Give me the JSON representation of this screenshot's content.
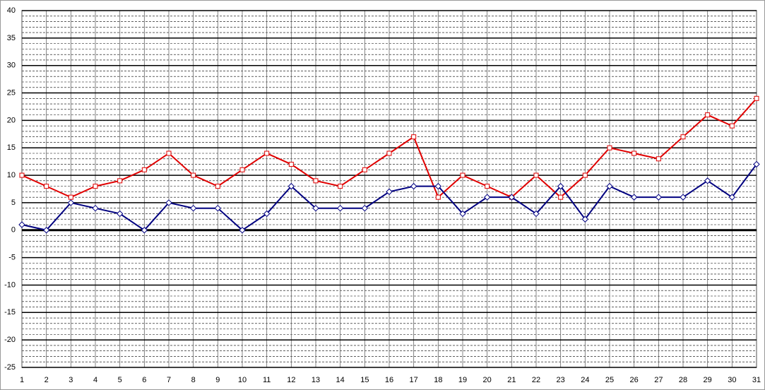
{
  "chart_data": {
    "type": "line",
    "categories": [
      "1",
      "2",
      "3",
      "4",
      "5",
      "6",
      "7",
      "8",
      "9",
      "10",
      "11",
      "12",
      "13",
      "14",
      "15",
      "16",
      "17",
      "18",
      "19",
      "20",
      "21",
      "22",
      "23",
      "24",
      "25",
      "26",
      "27",
      "28",
      "29",
      "30",
      "31"
    ],
    "series": [
      {
        "color": "#e00000",
        "marker": "square",
        "values": [
          10,
          8,
          6,
          8,
          9,
          11,
          14,
          10,
          8,
          11,
          14,
          12,
          9,
          8,
          11,
          14,
          17,
          6,
          10,
          8,
          6,
          10,
          6,
          10,
          15,
          14,
          13,
          17,
          21,
          19,
          24
        ]
      },
      {
        "color": "#000080",
        "marker": "diamond",
        "values": [
          1,
          0,
          5,
          4,
          3,
          0,
          5,
          4,
          4,
          0,
          3,
          8,
          4,
          4,
          4,
          7,
          8,
          8,
          3,
          6,
          6,
          3,
          8,
          2,
          8,
          6,
          6,
          6,
          9,
          6,
          12
        ]
      }
    ],
    "ylim": [
      -25,
      40
    ],
    "yticks": [
      -25,
      -20,
      -15,
      -10,
      -5,
      0,
      5,
      10,
      15,
      20,
      25,
      30,
      35,
      40
    ],
    "grid": true,
    "minor_grid": true
  }
}
